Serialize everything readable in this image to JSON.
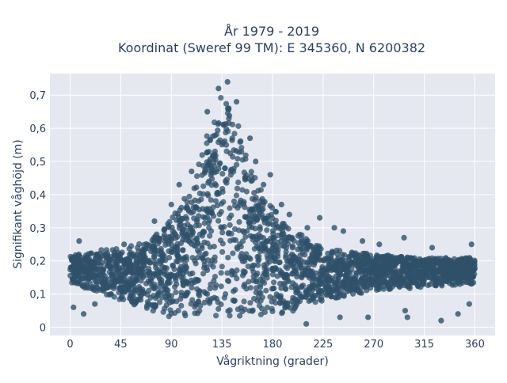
{
  "chart_data": {
    "type": "scatter",
    "title_line1": "År 1979 - 2019",
    "title_line2": "Koordinat (Sweref 99 TM): E 345360, N 6200382",
    "xlabel": "Vågriktning (grader)",
    "ylabel": "Signifikant våghöjd (m)",
    "xlim": [
      -18,
      378
    ],
    "ylim": [
      -0.025,
      0.765
    ],
    "x_ticks": [
      0,
      45,
      90,
      135,
      180,
      225,
      270,
      315,
      360
    ],
    "x_tick_labels": [
      "0",
      "45",
      "90",
      "135",
      "180",
      "225",
      "270",
      "315",
      "360"
    ],
    "y_ticks": [
      0,
      0.1,
      0.2,
      0.3,
      0.4,
      0.5,
      0.6,
      0.7
    ],
    "y_tick_labels": [
      "0",
      "0,1",
      "0,2",
      "0,3",
      "0,4",
      "0,5",
      "0,6",
      "0,7"
    ],
    "grid": true,
    "marker_color": "#2f5069",
    "plot_bg": "#e5e8f0",
    "envelope": {
      "x": [
        0,
        20,
        45,
        70,
        90,
        110,
        125,
        135,
        145,
        160,
        180,
        200,
        225,
        270,
        315,
        360
      ],
      "y_min": [
        0.13,
        0.11,
        0.08,
        0.05,
        0.03,
        0.03,
        0.03,
        0.03,
        0.03,
        0.03,
        0.03,
        0.05,
        0.08,
        0.11,
        0.12,
        0.13
      ],
      "y_max": [
        0.22,
        0.23,
        0.24,
        0.26,
        0.33,
        0.45,
        0.62,
        0.72,
        0.66,
        0.5,
        0.36,
        0.29,
        0.24,
        0.22,
        0.21,
        0.21
      ]
    },
    "outliers": [
      {
        "x": 8,
        "y": 0.26
      },
      {
        "x": 3,
        "y": 0.06
      },
      {
        "x": 12,
        "y": 0.04
      },
      {
        "x": 22,
        "y": 0.07
      },
      {
        "x": 48,
        "y": 0.25
      },
      {
        "x": 75,
        "y": 0.32
      },
      {
        "x": 90,
        "y": 0.37
      },
      {
        "x": 97,
        "y": 0.43
      },
      {
        "x": 108,
        "y": 0.47
      },
      {
        "x": 122,
        "y": 0.65
      },
      {
        "x": 132,
        "y": 0.72
      },
      {
        "x": 140,
        "y": 0.74
      },
      {
        "x": 148,
        "y": 0.68
      },
      {
        "x": 160,
        "y": 0.57
      },
      {
        "x": 165,
        "y": 0.5
      },
      {
        "x": 172,
        "y": 0.43
      },
      {
        "x": 178,
        "y": 0.46
      },
      {
        "x": 188,
        "y": 0.37
      },
      {
        "x": 195,
        "y": 0.34
      },
      {
        "x": 211,
        "y": 0.3
      },
      {
        "x": 222,
        "y": 0.33
      },
      {
        "x": 235,
        "y": 0.3
      },
      {
        "x": 243,
        "y": 0.29
      },
      {
        "x": 260,
        "y": 0.26
      },
      {
        "x": 275,
        "y": 0.25
      },
      {
        "x": 297,
        "y": 0.27
      },
      {
        "x": 322,
        "y": 0.24
      },
      {
        "x": 357,
        "y": 0.25
      },
      {
        "x": 355,
        "y": 0.07
      },
      {
        "x": 345,
        "y": 0.04
      },
      {
        "x": 330,
        "y": 0.02
      },
      {
        "x": 298,
        "y": 0.05
      },
      {
        "x": 265,
        "y": 0.03
      },
      {
        "x": 240,
        "y": 0.03
      },
      {
        "x": 210,
        "y": 0.01
      },
      {
        "x": 300,
        "y": 0.03
      }
    ]
  }
}
